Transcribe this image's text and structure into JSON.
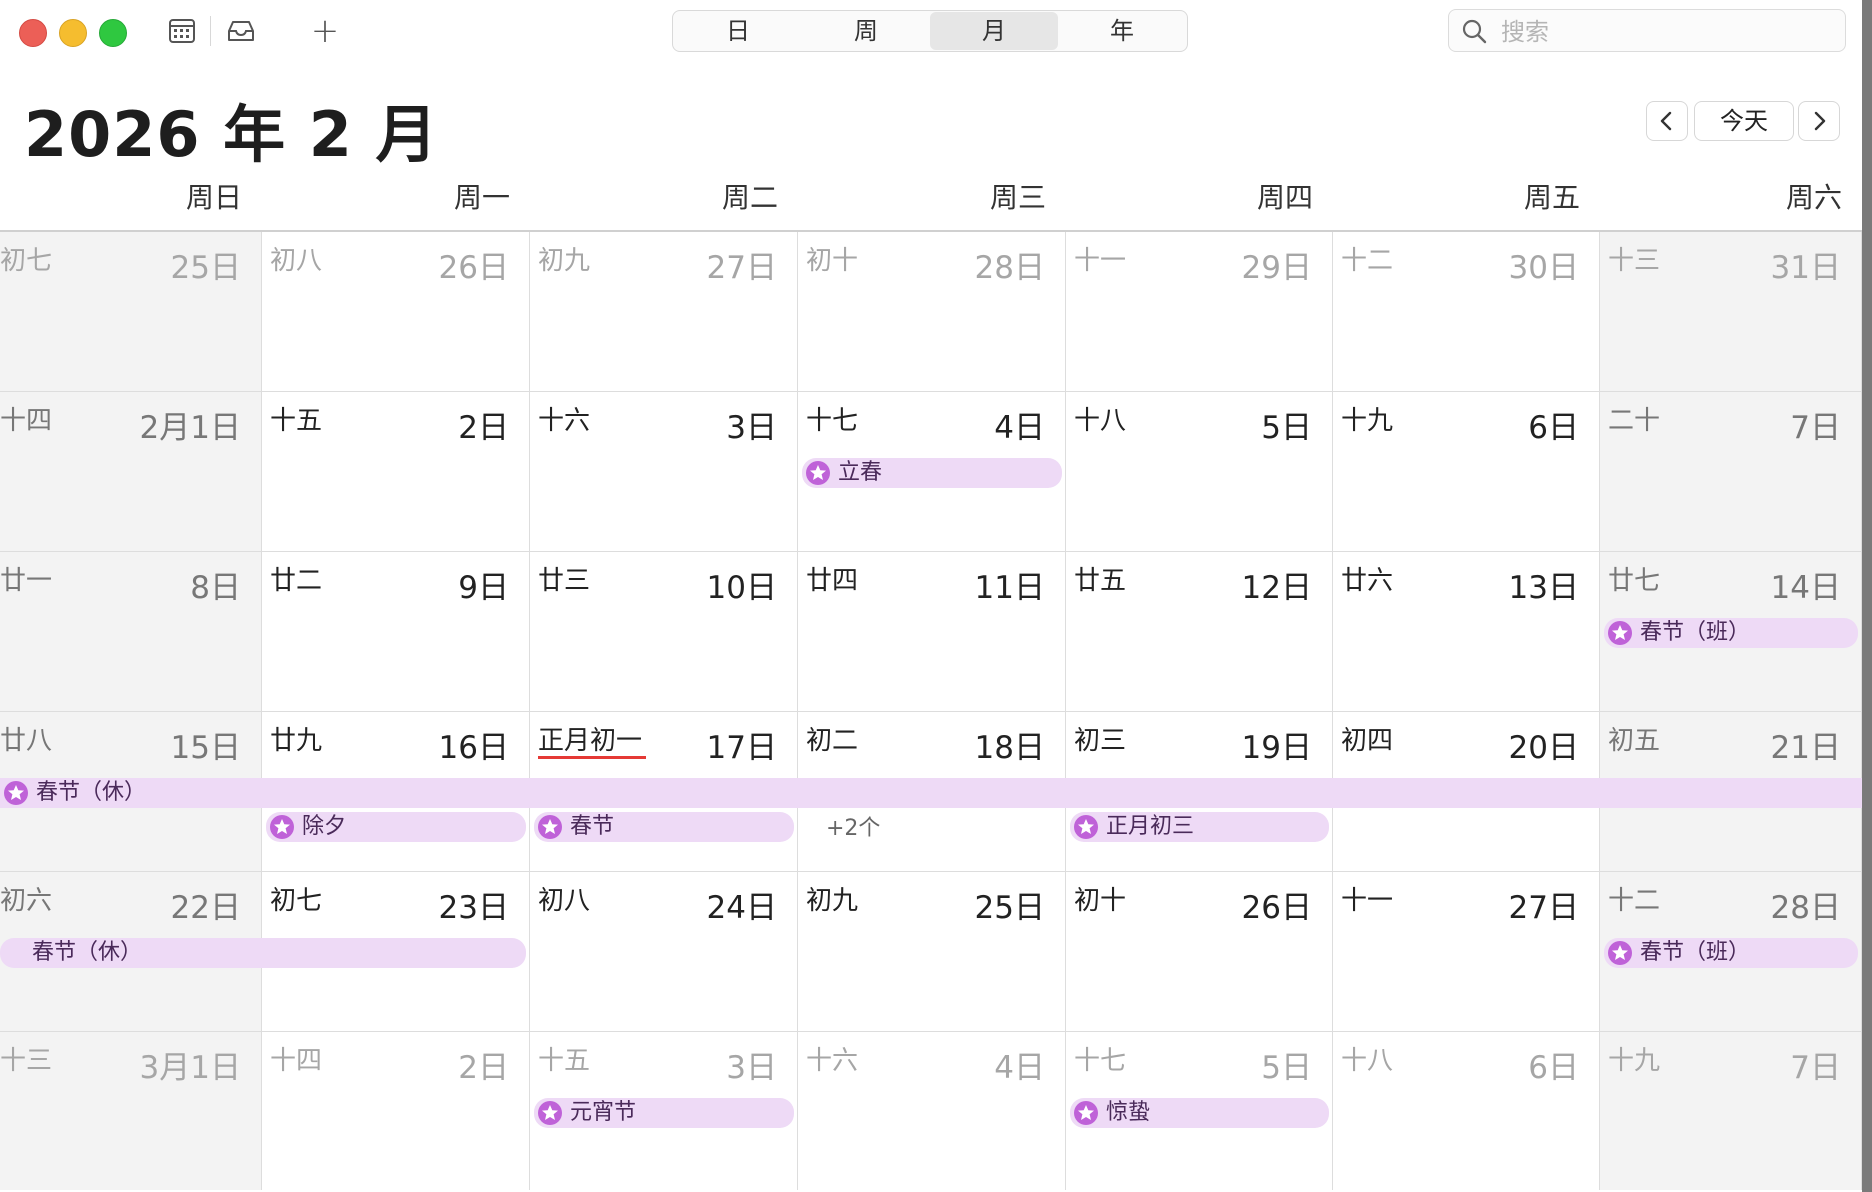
{
  "toolbar": {
    "calendar_icon": "calendar-icon",
    "inbox_icon": "inbox-icon",
    "add_label": "+",
    "views": [
      "日",
      "周",
      "月",
      "年"
    ],
    "active_view": "月",
    "search_placeholder": "搜索"
  },
  "title": "2026 年 2 月",
  "nav": {
    "prev": "‹",
    "today": "今天",
    "next": "›"
  },
  "weekdays": [
    "周日",
    "周一",
    "周二",
    "周三",
    "周四",
    "周五",
    "周六"
  ],
  "weeks": [
    [
      {
        "lunar": "初七",
        "day": "25日",
        "other": true
      },
      {
        "lunar": "初八",
        "day": "26日",
        "other": true
      },
      {
        "lunar": "初九",
        "day": "27日",
        "other": true
      },
      {
        "lunar": "初十",
        "day": "28日",
        "other": true
      },
      {
        "lunar": "十一",
        "day": "29日",
        "other": true
      },
      {
        "lunar": "十二",
        "day": "30日",
        "other": true
      },
      {
        "lunar": "十三",
        "day": "31日",
        "other": true
      }
    ],
    [
      {
        "lunar": "十四",
        "day": "2月1日"
      },
      {
        "lunar": "十五",
        "day": "2日"
      },
      {
        "lunar": "十六",
        "day": "3日"
      },
      {
        "lunar": "十七",
        "day": "4日"
      },
      {
        "lunar": "十八",
        "day": "5日"
      },
      {
        "lunar": "十九",
        "day": "6日"
      },
      {
        "lunar": "二十",
        "day": "7日"
      }
    ],
    [
      {
        "lunar": "廿一",
        "day": "8日"
      },
      {
        "lunar": "廿二",
        "day": "9日"
      },
      {
        "lunar": "廿三",
        "day": "10日"
      },
      {
        "lunar": "廿四",
        "day": "11日"
      },
      {
        "lunar": "廿五",
        "day": "12日"
      },
      {
        "lunar": "廿六",
        "day": "13日"
      },
      {
        "lunar": "廿七",
        "day": "14日"
      }
    ],
    [
      {
        "lunar": "廿八",
        "day": "15日"
      },
      {
        "lunar": "廿九",
        "day": "16日"
      },
      {
        "lunar": "正月初一",
        "day": "17日",
        "today": true
      },
      {
        "lunar": "初二",
        "day": "18日",
        "more": "+2个"
      },
      {
        "lunar": "初三",
        "day": "19日"
      },
      {
        "lunar": "初四",
        "day": "20日"
      },
      {
        "lunar": "初五",
        "day": "21日"
      }
    ],
    [
      {
        "lunar": "初六",
        "day": "22日"
      },
      {
        "lunar": "初七",
        "day": "23日"
      },
      {
        "lunar": "初八",
        "day": "24日"
      },
      {
        "lunar": "初九",
        "day": "25日"
      },
      {
        "lunar": "初十",
        "day": "26日"
      },
      {
        "lunar": "十一",
        "day": "27日"
      },
      {
        "lunar": "十二",
        "day": "28日"
      }
    ],
    [
      {
        "lunar": "十三",
        "day": "3月1日",
        "other": true
      },
      {
        "lunar": "十四",
        "day": "2日",
        "other": true
      },
      {
        "lunar": "十五",
        "day": "3日",
        "other": true
      },
      {
        "lunar": "十六",
        "day": "4日",
        "other": true
      },
      {
        "lunar": "十七",
        "day": "5日",
        "other": true
      },
      {
        "lunar": "十八",
        "day": "6日",
        "other": true
      },
      {
        "lunar": "十九",
        "day": "7日",
        "other": true
      }
    ]
  ],
  "events": [
    {
      "title": "立春",
      "week": 1,
      "start": 3,
      "end": 3,
      "lane": 0,
      "icon": true
    },
    {
      "title": "春节（班）",
      "week": 2,
      "start": 6,
      "end": 6,
      "lane": 0,
      "icon": true
    },
    {
      "title": "春节（休）",
      "week": 3,
      "start": 0,
      "end": 6,
      "lane": 0,
      "icon": true,
      "full": true
    },
    {
      "title": "除夕",
      "week": 3,
      "start": 1,
      "end": 1,
      "lane": 1,
      "icon": true
    },
    {
      "title": "春节",
      "week": 3,
      "start": 2,
      "end": 2,
      "lane": 1,
      "icon": true
    },
    {
      "title": "正月初三",
      "week": 3,
      "start": 4,
      "end": 4,
      "lane": 1,
      "icon": true
    },
    {
      "title": "春节（休）",
      "week": 4,
      "start": 0,
      "end": 1,
      "lane": 0,
      "icon": false
    },
    {
      "title": "春节（班）",
      "week": 4,
      "start": 6,
      "end": 6,
      "lane": 0,
      "icon": true
    },
    {
      "title": "元宵节",
      "week": 5,
      "start": 2,
      "end": 2,
      "lane": 0,
      "icon": true
    },
    {
      "title": "惊蛰",
      "week": 5,
      "start": 4,
      "end": 4,
      "lane": 0,
      "icon": true
    }
  ],
  "colors": {
    "event_bg": "#eedaf6",
    "event_icon": "#bf62d8",
    "today_underline": "#e53935"
  }
}
